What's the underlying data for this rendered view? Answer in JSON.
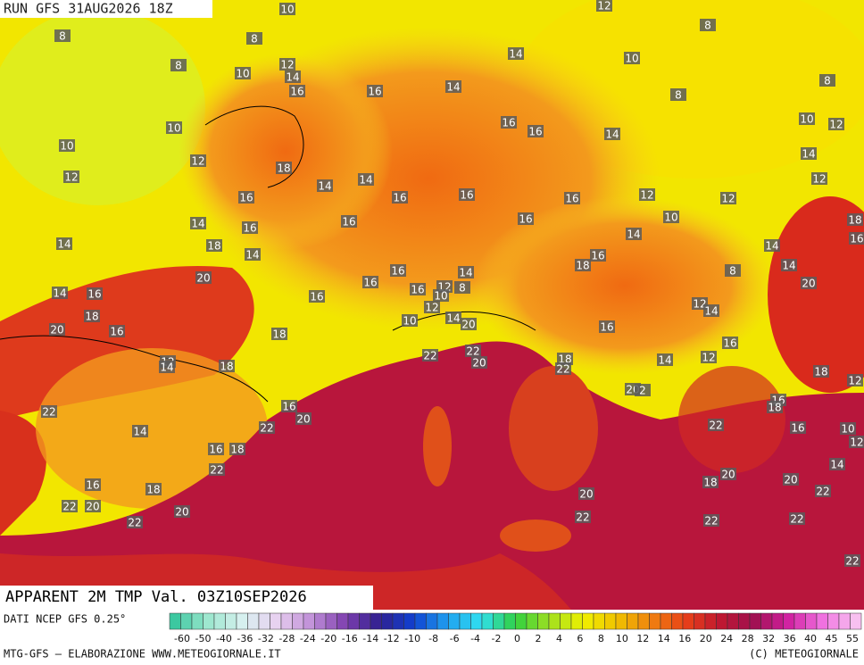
{
  "header": {
    "run": "RUN GFS 31AUG2026 18Z"
  },
  "map": {
    "labels": [
      10,
      8,
      8,
      8,
      10,
      12,
      14,
      16,
      16,
      14,
      14,
      10,
      8,
      8,
      8,
      10,
      12,
      10,
      10,
      16,
      16,
      14,
      12,
      18,
      12,
      14,
      12,
      14,
      14,
      16,
      16,
      16,
      16,
      12,
      12,
      14,
      16,
      16,
      16,
      10,
      18,
      16,
      14,
      18,
      14,
      14,
      14,
      14,
      16,
      14,
      18,
      16,
      8,
      20,
      16,
      16,
      16,
      12,
      10,
      8,
      20,
      14,
      16,
      12,
      12,
      14,
      18,
      10,
      14,
      20,
      16,
      20,
      16,
      18,
      16,
      22,
      22,
      20,
      18,
      22,
      14,
      12,
      12,
      14,
      18,
      18,
      20,
      2,
      12,
      16,
      20,
      16,
      18,
      22,
      22,
      14,
      22,
      16,
      10,
      12,
      16,
      18,
      14,
      22,
      20,
      16,
      18,
      20,
      18,
      22,
      20,
      22,
      20,
      20,
      22,
      22,
      22,
      22,
      22,
      12
    ]
  },
  "footer": {
    "title": "APPARENT 2M TMP Val. 03Z10SEP2026",
    "source": "DATI NCEP GFS 0.25°",
    "credit": "MTG-GFS — ELABORAZIONE WWW.METEOGIORNALE.IT",
    "copyright": "(C) METEOGIORNALE",
    "scale": [
      -60,
      -50,
      -40,
      -36,
      -32,
      -28,
      -24,
      -20,
      -16,
      -14,
      -12,
      -10,
      -8,
      -6,
      -4,
      -2,
      0,
      2,
      4,
      6,
      8,
      10,
      12,
      14,
      16,
      20,
      24,
      28,
      32,
      36,
      40,
      45,
      55
    ]
  }
}
